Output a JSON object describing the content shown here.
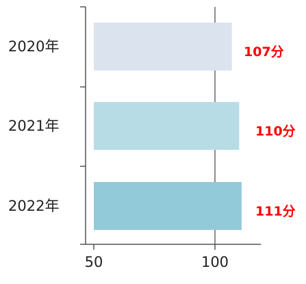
{
  "chart_data": {
    "type": "bar",
    "orientation": "horizontal",
    "categories": [
      "2020年",
      "2021年",
      "2022年"
    ],
    "values": [
      107,
      110,
      111
    ],
    "data_labels": [
      "107分",
      "110分",
      "111分"
    ],
    "x_ticks": [
      "50",
      "100"
    ],
    "xlim": [
      50,
      119
    ],
    "grid": true,
    "colors": [
      "#dbe3ef",
      "#b8dce6",
      "#93cad9"
    ],
    "label_color": "#ff0000",
    "title": "",
    "xlabel": "",
    "ylabel": ""
  }
}
